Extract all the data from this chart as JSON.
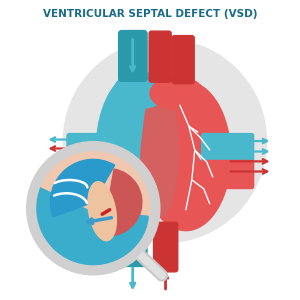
{
  "title": "VENTRICULAR SEPTAL DEFECT (VSD)",
  "title_color": "#1a6b8a",
  "title_fontsize": 7.5,
  "bg_color": "#ffffff",
  "heart_blue": "#4ab8cc",
  "heart_red": "#e85555",
  "heart_dark_red": "#cc3333",
  "heart_dark_blue": "#2a9aaa",
  "arrow_blue": "#4ab8cc",
  "arrow_red": "#cc3333",
  "gray_bg": "#e0e0e0",
  "mag_blue": "#3aadcc",
  "mag_border": "#d5d5d5",
  "mag_skin": "#f0c8b0"
}
